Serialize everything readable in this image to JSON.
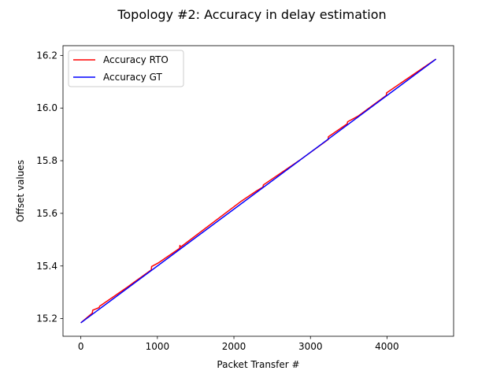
{
  "chart_data": {
    "type": "line",
    "title": "Topology #2: Accuracy in delay estimation",
    "xlabel": "Packet Transfer #",
    "ylabel": "Offset values",
    "xlim": [
      -233,
      4870
    ],
    "ylim": [
      15.133,
      16.237
    ],
    "xticks": [
      0,
      1000,
      2000,
      3000,
      4000
    ],
    "xtick_labels": [
      "0",
      "1000",
      "2000",
      "3000",
      "4000"
    ],
    "yticks": [
      15.2,
      15.4,
      15.6,
      15.8,
      16.0,
      16.2
    ],
    "ytick_labels": [
      "15.2",
      "15.4",
      "15.6",
      "15.8",
      "16.0",
      "16.2"
    ],
    "grid": false,
    "legend_placement": "upper-left",
    "series": [
      {
        "name": "Accuracy RTO",
        "color": "#ff0000",
        "x": [
          0,
          150,
          155,
          240,
          245,
          420,
          600,
          660,
          920,
          925,
          1020,
          1290,
          1295,
          1300,
          2100,
          2300,
          2380,
          2385,
          2860,
          3230,
          3235,
          3480,
          3485,
          3620,
          3990,
          3995,
          4640
        ],
        "y": [
          15.184,
          15.221,
          15.232,
          15.242,
          15.247,
          15.282,
          15.318,
          15.331,
          15.385,
          15.398,
          15.413,
          15.467,
          15.478,
          15.471,
          15.647,
          15.686,
          15.7,
          15.708,
          15.802,
          15.88,
          15.891,
          15.94,
          15.948,
          15.969,
          16.048,
          16.058,
          16.186
        ]
      },
      {
        "name": "Accuracy GT",
        "color": "#0000ff",
        "x": [
          0,
          4640
        ],
        "y": [
          15.184,
          16.186
        ]
      }
    ]
  }
}
